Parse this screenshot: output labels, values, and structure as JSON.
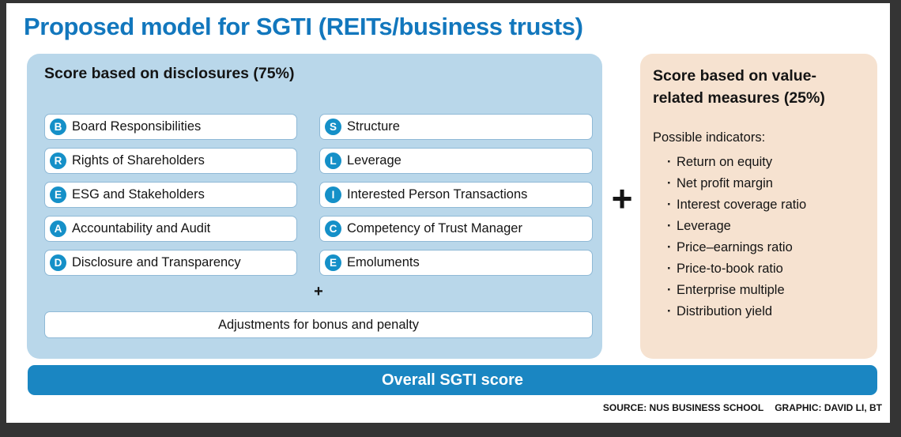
{
  "title": "Proposed model for SGTI (REITs/business trusts)",
  "disclosures": {
    "heading": "Score based on disclosures (75%)",
    "left_items": [
      {
        "badge": "B",
        "label": "Board Responsibilities"
      },
      {
        "badge": "R",
        "label": "Rights of Shareholders"
      },
      {
        "badge": "E",
        "label": "ESG and Stakeholders"
      },
      {
        "badge": "A",
        "label": "Accountability and Audit"
      },
      {
        "badge": "D",
        "label": "Disclosure and Transparency"
      }
    ],
    "right_items": [
      {
        "badge": "S",
        "label": "Structure"
      },
      {
        "badge": "L",
        "label": "Leverage"
      },
      {
        "badge": "I",
        "label": "Interested Person Transactions"
      },
      {
        "badge": "C",
        "label": "Competency of Trust Manager"
      },
      {
        "badge": "E",
        "label": "Emoluments"
      }
    ],
    "plus_small": "+",
    "adjustments": "Adjustments for bonus and penalty"
  },
  "connector_plus": "+",
  "value_measures": {
    "heading": "Score based on value-related measures (25%)",
    "subheading": "Possible indicators:",
    "indicators": [
      "Return on equity",
      "Net profit margin",
      "Interest coverage ratio",
      "Leverage",
      "Price–earnings ratio",
      "Price-to-book ratio",
      "Enterprise multiple",
      "Distribution yield"
    ]
  },
  "overall_bar": "Overall SGTI score",
  "credits": {
    "source": "SOURCE: NUS BUSINESS SCHOOL",
    "graphic": "GRAPHIC: DAVID LI, BT"
  },
  "colors": {
    "accent_blue": "#1277bd",
    "panel_blue": "#b9d7ea",
    "badge_blue": "#1590c8",
    "bar_blue": "#1a86c2",
    "panel_peach": "#f6e2d0"
  }
}
